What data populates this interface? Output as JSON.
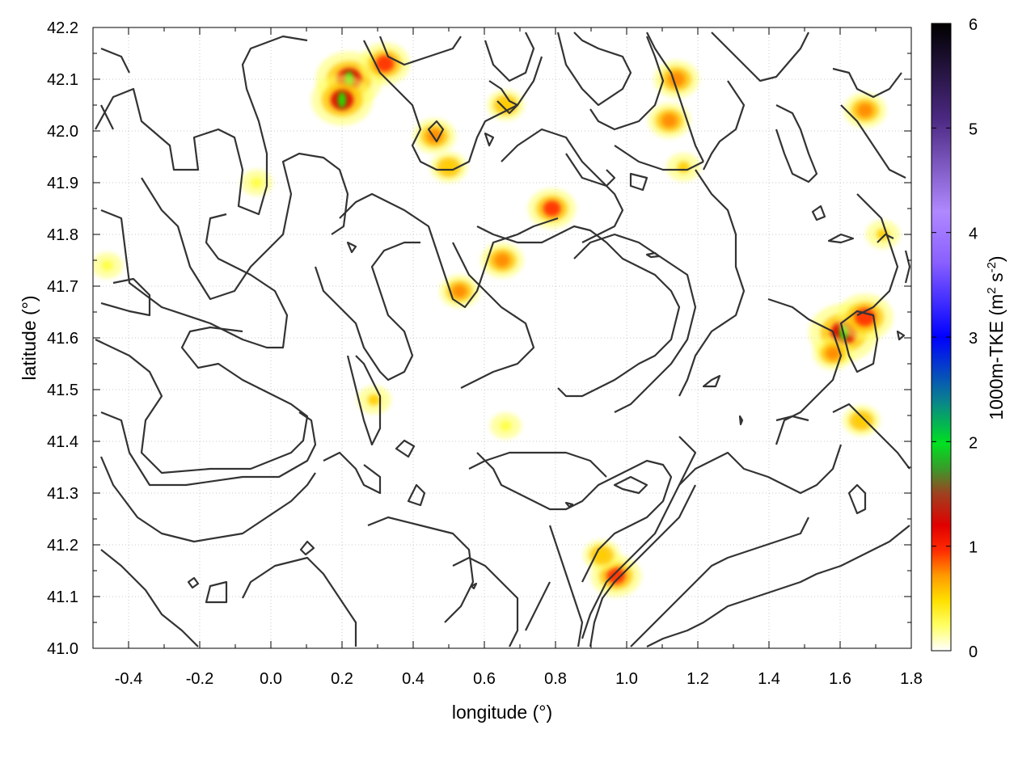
{
  "chart_data": {
    "type": "heatmap",
    "title": "",
    "xlabel": "longitude (°)",
    "ylabel": "latitude (°)",
    "xlim": [
      -0.5,
      1.8
    ],
    "ylim": [
      41.0,
      42.2
    ],
    "xticks": [
      -0.4,
      -0.2,
      0.0,
      0.2,
      0.4,
      0.6,
      0.8,
      1.0,
      1.2,
      1.4,
      1.6,
      1.8
    ],
    "xtick_labels": [
      "-0.4",
      "-0.2",
      "0.0",
      "0.2",
      "0.4",
      "0.6",
      "0.8",
      "1.0",
      "1.2",
      "1.4",
      "1.6",
      "1.8"
    ],
    "yticks": [
      41.0,
      41.1,
      41.2,
      41.3,
      41.4,
      41.5,
      41.6,
      41.7,
      41.8,
      41.9,
      42.0,
      42.1,
      42.2
    ],
    "ytick_labels": [
      "41.0",
      "41.1",
      "41.2",
      "41.3",
      "41.4",
      "41.5",
      "41.6",
      "41.7",
      "41.8",
      "41.9",
      "42.0",
      "42.1",
      "42.2"
    ],
    "grid": true,
    "colorbar": {
      "label_main": "1000m-TKE (m",
      "label_sup1": "2",
      "label_mid": " s",
      "label_sup2": "-2",
      "label_end": ")",
      "range": [
        0,
        6
      ],
      "ticks": [
        0,
        1,
        2,
        3,
        4,
        5,
        6
      ],
      "tick_labels": [
        "0",
        "1",
        "2",
        "3",
        "4",
        "5",
        "6"
      ],
      "colors": [
        "#ffffff",
        "#ffff00",
        "#ff8000",
        "#ff0000",
        "#2ea02e",
        "#00ff00",
        "#0000ff",
        "#9966ff",
        "#000000"
      ]
    },
    "hotspots": [
      {
        "lon": 0.22,
        "lat": 42.1,
        "value": 1.6
      },
      {
        "lon": 0.2,
        "lat": 42.06,
        "value": 1.4
      },
      {
        "lon": 0.32,
        "lat": 42.13,
        "value": 1.0
      },
      {
        "lon": 0.46,
        "lat": 41.99,
        "value": 0.7
      },
      {
        "lon": 0.5,
        "lat": 41.93,
        "value": 0.5
      },
      {
        "lon": 0.79,
        "lat": 41.85,
        "value": 0.9
      },
      {
        "lon": 0.65,
        "lat": 41.75,
        "value": 0.7
      },
      {
        "lon": 0.53,
        "lat": 41.69,
        "value": 0.6
      },
      {
        "lon": 0.66,
        "lat": 42.05,
        "value": 0.5
      },
      {
        "lon": 1.14,
        "lat": 42.1,
        "value": 0.8
      },
      {
        "lon": 1.12,
        "lat": 42.02,
        "value": 0.7
      },
      {
        "lon": 1.16,
        "lat": 41.93,
        "value": 0.4
      },
      {
        "lon": 1.67,
        "lat": 42.04,
        "value": 0.7
      },
      {
        "lon": 1.61,
        "lat": 41.61,
        "value": 1.7
      },
      {
        "lon": 1.67,
        "lat": 41.64,
        "value": 1.2
      },
      {
        "lon": 1.58,
        "lat": 41.57,
        "value": 0.6
      },
      {
        "lon": 1.72,
        "lat": 41.8,
        "value": 0.4
      },
      {
        "lon": 0.97,
        "lat": 41.14,
        "value": 1.0
      },
      {
        "lon": 0.93,
        "lat": 41.18,
        "value": 0.5
      },
      {
        "lon": 0.29,
        "lat": 41.48,
        "value": 0.4
      },
      {
        "lon": -0.46,
        "lat": 41.74,
        "value": 0.3
      },
      {
        "lon": -0.04,
        "lat": 41.9,
        "value": 0.3
      },
      {
        "lon": 1.66,
        "lat": 41.44,
        "value": 0.5
      },
      {
        "lon": 0.66,
        "lat": 41.43,
        "value": 0.3
      }
    ]
  }
}
